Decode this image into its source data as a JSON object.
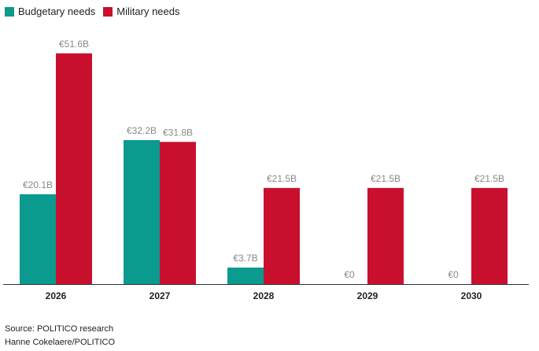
{
  "chart_data": {
    "type": "bar",
    "categories": [
      "2026",
      "2027",
      "2028",
      "2029",
      "2030"
    ],
    "series": [
      {
        "name": "Budgetary needs",
        "color": "#0a9a8e",
        "values": [
          20.1,
          32.2,
          3.7,
          0,
          0
        ],
        "labels": [
          "€20.1B",
          "€32.2B",
          "€3.7B",
          "€0",
          "€0"
        ]
      },
      {
        "name": "Military needs",
        "color": "#c8102e",
        "values": [
          51.6,
          31.8,
          21.5,
          21.5,
          21.5
        ],
        "labels": [
          "€51.6B",
          "€31.8B",
          "€21.5B",
          "€21.5B",
          "€21.5B"
        ]
      }
    ],
    "ylim": [
      0,
      60
    ],
    "title": "",
    "xlabel": "",
    "ylabel": "",
    "legend": "top-left"
  },
  "footer": {
    "source": "Source: POLITICO research",
    "credit": "Hanne Cokelaere/POLITICO"
  }
}
